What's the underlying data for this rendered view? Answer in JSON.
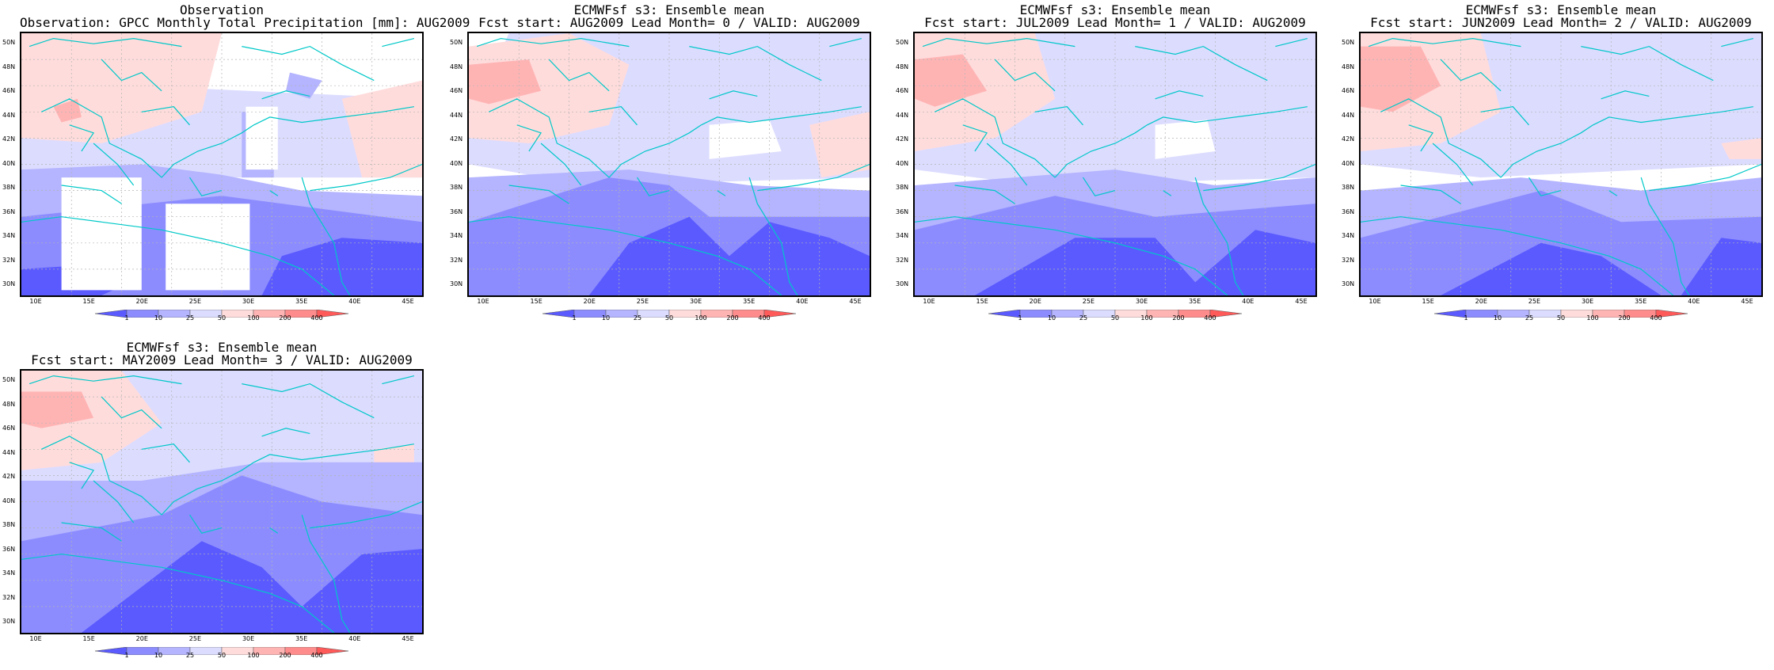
{
  "panels": [
    {
      "line1": "Observation",
      "line2": "Observation: GPCC Monthly Total Precipitation [mm]: AUG2009",
      "kind": "obs"
    },
    {
      "line1": "ECMWFsf s3: Ensemble mean",
      "line2": "Fcst start: AUG2009  Lead Month= 0 / VALID: AUG2009",
      "kind": "f0"
    },
    {
      "line1": "ECMWFsf s3: Ensemble mean",
      "line2": "Fcst start: JUL2009  Lead Month= 1 / VALID: AUG2009",
      "kind": "f1"
    },
    {
      "line1": "ECMWFsf s3: Ensemble mean",
      "line2": "Fcst start: JUN2009  Lead Month= 2 / VALID: AUG2009",
      "kind": "f2"
    },
    {
      "line1": "ECMWFsf s3: Ensemble mean",
      "line2": "Fcst start: MAY2009  Lead Month= 3 / VALID: AUG2009",
      "kind": "f3"
    }
  ],
  "lat_labels": [
    "50N",
    "48N",
    "46N",
    "44N",
    "42N",
    "40N",
    "38N",
    "36N",
    "34N",
    "32N",
    "30N"
  ],
  "lon_labels": [
    "10E",
    "15E",
    "20E",
    "25E",
    "30E",
    "35E",
    "40E",
    "45E"
  ],
  "colorbar": {
    "levels": [
      "1",
      "10",
      "25",
      "50",
      "100",
      "200",
      "400"
    ],
    "colors": [
      "#5a5aff",
      "#8c8cff",
      "#b4b4ff",
      "#dcdcff",
      "#ffdcdc",
      "#ffb4b4",
      "#ff8c8c",
      "#ff5a5a"
    ]
  },
  "colors": {
    "coast": "#00c8c8",
    "grid": "#b4b4b4"
  }
}
